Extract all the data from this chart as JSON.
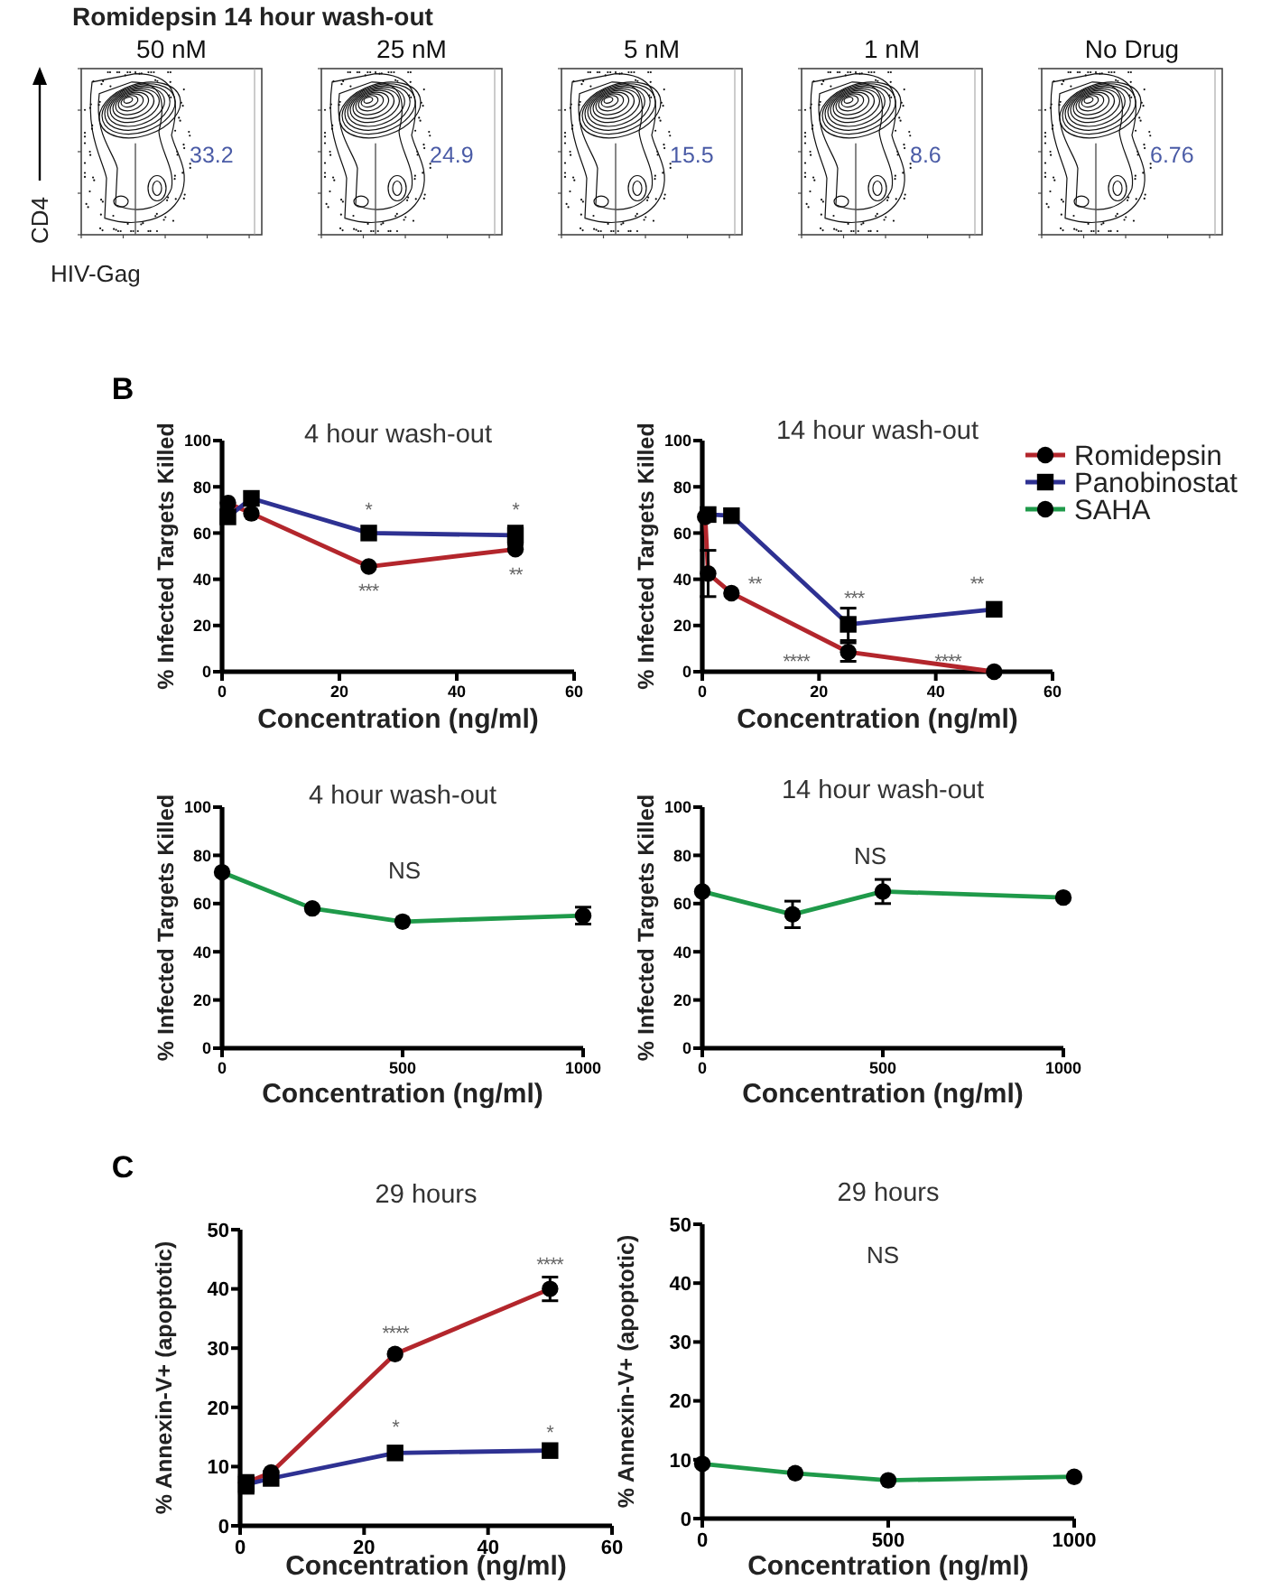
{
  "chart_data": [
    {
      "type": "other",
      "title": "Romidepsin 14 hour wash-out",
      "xlabel": "HIV-Gag",
      "ylabel": "CD4",
      "categories": [
        "50 nM",
        "25 nM",
        "5 nM",
        "1 nM",
        "No Drug"
      ],
      "values": [
        33.2,
        24.9,
        15.5,
        8.6,
        6.76
      ],
      "data_labels": true
    },
    {
      "type": "line",
      "title": "4 hour wash-out",
      "xlabel": "Concentration (ng/ml)",
      "ylabel": "% Infected Targets Killed",
      "x": [
        1,
        5,
        25,
        50
      ],
      "xlim": [
        0,
        60
      ],
      "xticks": [
        0,
        20,
        40,
        60
      ],
      "ylim": [
        0,
        100
      ],
      "yticks": [
        0,
        20,
        40,
        60,
        80,
        100
      ],
      "series": [
        {
          "color": "#b3262c",
          "marker": "circle",
          "values": [
            73,
            68.5,
            45.5,
            53
          ]
        },
        {
          "color": "#2e3192",
          "marker": "square",
          "values": [
            67,
            75,
            60,
            59
          ],
          "errors": [
            null,
            null,
            null,
            4
          ]
        }
      ],
      "annotations": [
        "B",
        "*",
        "***",
        "*",
        "**"
      ]
    },
    {
      "type": "line",
      "title": "14 hour wash-out",
      "xlabel": "Concentration (ng/ml)",
      "ylabel": "% Infected Targets Killed",
      "xlim": [
        0,
        60
      ],
      "xticks": [
        0,
        20,
        40,
        60
      ],
      "ylim": [
        0,
        100
      ],
      "yticks": [
        0,
        20,
        40,
        60,
        80,
        100
      ],
      "legend": "top right",
      "series": [
        {
          "name": "Romidepsin",
          "color": "#b3262c",
          "marker": "circle",
          "x": [
            0.5,
            1,
            5,
            25,
            50
          ],
          "values": [
            67,
            42.5,
            34,
            8.5,
            0
          ],
          "errors": [
            null,
            10,
            null,
            4,
            null
          ]
        },
        {
          "name": "Panobinostat",
          "color": "#2e3192",
          "marker": "square",
          "x": [
            1,
            5,
            25,
            50
          ],
          "values": [
            68,
            67.5,
            20.5,
            27
          ],
          "errors": [
            null,
            null,
            7,
            null
          ]
        },
        {
          "name": "SAHA",
          "color": "#1f9a4a",
          "marker": "circle"
        }
      ],
      "annotations": [
        "**",
        "***",
        "**",
        "****",
        "****"
      ]
    },
    {
      "type": "line",
      "title": "4 hour wash-out",
      "xlabel": "Concentration (ng/ml)",
      "ylabel": "% Infected Targets Killed",
      "x": [
        0,
        250,
        500,
        1000
      ],
      "xlim": [
        0,
        1000
      ],
      "xticks": [
        0,
        500,
        1000
      ],
      "ylim": [
        0,
        100
      ],
      "yticks": [
        0,
        20,
        40,
        60,
        80,
        100
      ],
      "series": [
        {
          "color": "#1f9a4a",
          "marker": "circle",
          "values": [
            73,
            58,
            52.5,
            55
          ],
          "errors": [
            null,
            null,
            null,
            3.5
          ]
        }
      ],
      "annotations": [
        "NS"
      ]
    },
    {
      "type": "line",
      "title": "14 hour wash-out",
      "xlabel": "Concentration (ng/ml)",
      "ylabel": "% Infected Targets Killed",
      "x": [
        0,
        250,
        500,
        1000
      ],
      "xlim": [
        0,
        1000
      ],
      "xticks": [
        0,
        500,
        1000
      ],
      "ylim": [
        0,
        100
      ],
      "yticks": [
        0,
        20,
        40,
        60,
        80,
        100
      ],
      "series": [
        {
          "color": "#1f9a4a",
          "marker": "circle",
          "values": [
            65,
            55.5,
            65,
            62.5
          ],
          "errors": [
            null,
            5.5,
            5,
            null
          ]
        }
      ],
      "annotations": [
        "NS"
      ]
    },
    {
      "type": "line",
      "title": "29 hours",
      "xlabel": "Concentration (ng/ml)",
      "ylabel": "% Annexin-V+ (apoptotic)",
      "x": [
        1,
        5,
        25,
        50
      ],
      "xlim": [
        0,
        60
      ],
      "xticks": [
        0,
        20,
        40,
        60
      ],
      "ylim": [
        0,
        50
      ],
      "yticks": [
        0,
        10,
        20,
        30,
        40,
        50
      ],
      "series": [
        {
          "color": "#b3262c",
          "marker": "circle",
          "values": [
            7.3,
            9,
            29,
            40
          ],
          "errors": [
            null,
            null,
            null,
            2
          ]
        },
        {
          "color": "#2e3192",
          "marker": "square",
          "values": [
            7,
            8,
            12.3,
            12.7
          ],
          "errors": [
            1.5,
            null,
            null,
            null
          ]
        }
      ],
      "annotations": [
        "C",
        "****",
        "*",
        "****",
        "*"
      ]
    },
    {
      "type": "line",
      "title": "29 hours",
      "xlabel": "Concentration (ng/ml)",
      "ylabel": "% Annexin-V+ (apoptotic)",
      "x": [
        0,
        250,
        500,
        1000
      ],
      "xlim": [
        0,
        1000
      ],
      "xticks": [
        0,
        500,
        1000
      ],
      "ylim": [
        0,
        50
      ],
      "yticks": [
        0,
        10,
        20,
        30,
        40,
        50
      ],
      "series": [
        {
          "color": "#1f9a4a",
          "marker": "circle",
          "values": [
            9.3,
            7.7,
            6.5,
            7.1
          ]
        }
      ],
      "annotations": [
        "NS"
      ]
    }
  ]
}
